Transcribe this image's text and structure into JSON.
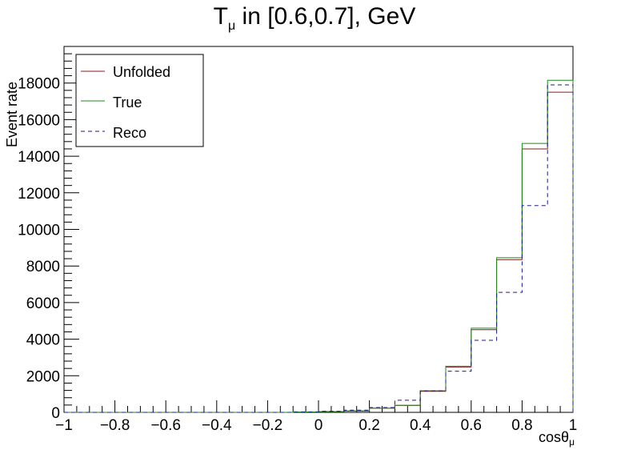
{
  "chart_data": {
    "type": "step-histogram",
    "title": {
      "main": "T",
      "subscript": "μ",
      "rest": " in [0.6,0.7], GeV"
    },
    "xlabel": {
      "main": "cosθ",
      "subscript": "μ"
    },
    "ylabel": "Event rate",
    "xlim": [
      -1,
      1
    ],
    "ylim": [
      0,
      20000
    ],
    "x_ticks": [
      -1,
      -0.8,
      -0.6,
      -0.4,
      -0.2,
      0,
      0.2,
      0.4,
      0.6,
      0.8,
      1
    ],
    "x_tick_labels": [
      "−1",
      "−0.8",
      "−0.6",
      "−0.4",
      "−0.2",
      "0",
      "0.2",
      "0.4",
      "0.6",
      "0.8",
      "1"
    ],
    "y_ticks": [
      0,
      2000,
      4000,
      6000,
      8000,
      10000,
      12000,
      14000,
      16000,
      18000
    ],
    "y_tick_labels": [
      "0",
      "2000",
      "4000",
      "6000",
      "8000",
      "10000",
      "12000",
      "14000",
      "16000",
      "18000"
    ],
    "legend_position": "top-left",
    "bin_edges": [
      -1,
      -0.9,
      -0.8,
      -0.7,
      -0.6,
      -0.5,
      -0.4,
      -0.3,
      -0.2,
      -0.1,
      0,
      0.1,
      0.2,
      0.3,
      0.4,
      0.5,
      0.6,
      0.7,
      0.8,
      0.9,
      1
    ],
    "series": [
      {
        "name": "Unfolded",
        "color": "#8b1a1a",
        "style": "solid",
        "values": [
          0,
          0,
          0,
          0,
          0,
          0,
          0,
          0,
          0,
          20,
          40,
          70,
          230,
          380,
          1150,
          2480,
          4520,
          8350,
          14400,
          17500
        ]
      },
      {
        "name": "True",
        "color": "#1a8c1a",
        "style": "solid",
        "values": [
          0,
          0,
          0,
          0,
          0,
          0,
          0,
          0,
          0,
          20,
          40,
          80,
          230,
          390,
          1180,
          2520,
          4600,
          8450,
          14700,
          18150
        ]
      },
      {
        "name": "Reco",
        "color": "#1a1a8c",
        "style": "dashed",
        "values": [
          0,
          0,
          0,
          0,
          0,
          0,
          0,
          0,
          0,
          30,
          60,
          120,
          260,
          660,
          1180,
          2250,
          3940,
          6560,
          11300,
          17900
        ]
      }
    ]
  }
}
